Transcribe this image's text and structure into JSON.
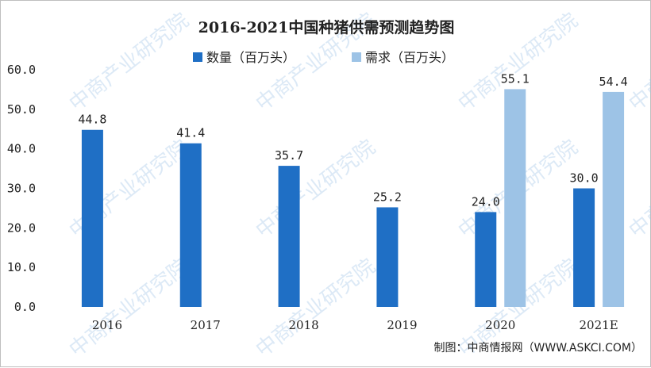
{
  "watermark": "中商产业研究院",
  "source": "制图：中商情报网（WWW.ASKCI.COM）",
  "colors": {
    "quantity": "#1f6fc5",
    "demand": "#9dc3e6",
    "watermark": "#9ec3e6"
  },
  "chart_data": {
    "type": "bar",
    "title": "2016-2021中国种猪供需预测趋势图",
    "categories": [
      "2016",
      "2017",
      "2018",
      "2019",
      "2020",
      "2021E"
    ],
    "series": [
      {
        "name": "数量（百万头）",
        "values": [
          44.8,
          41.4,
          35.7,
          25.2,
          24.0,
          30.0
        ]
      },
      {
        "name": "需求（百万头）",
        "values": [
          null,
          null,
          null,
          null,
          55.1,
          54.4
        ]
      }
    ],
    "data_labels": [
      [
        "44.8",
        "41.4",
        "35.7",
        "25.2",
        "24.0",
        "30.0"
      ],
      [
        null,
        null,
        null,
        null,
        "55.1",
        "54.4"
      ]
    ],
    "y_ticks": [
      "0.0",
      "10.0",
      "20.0",
      "30.0",
      "40.0",
      "50.0",
      "60.0"
    ],
    "ylim": [
      0,
      60
    ],
    "xlabel": "",
    "ylabel": "",
    "grid": false,
    "legend": "top-center"
  }
}
